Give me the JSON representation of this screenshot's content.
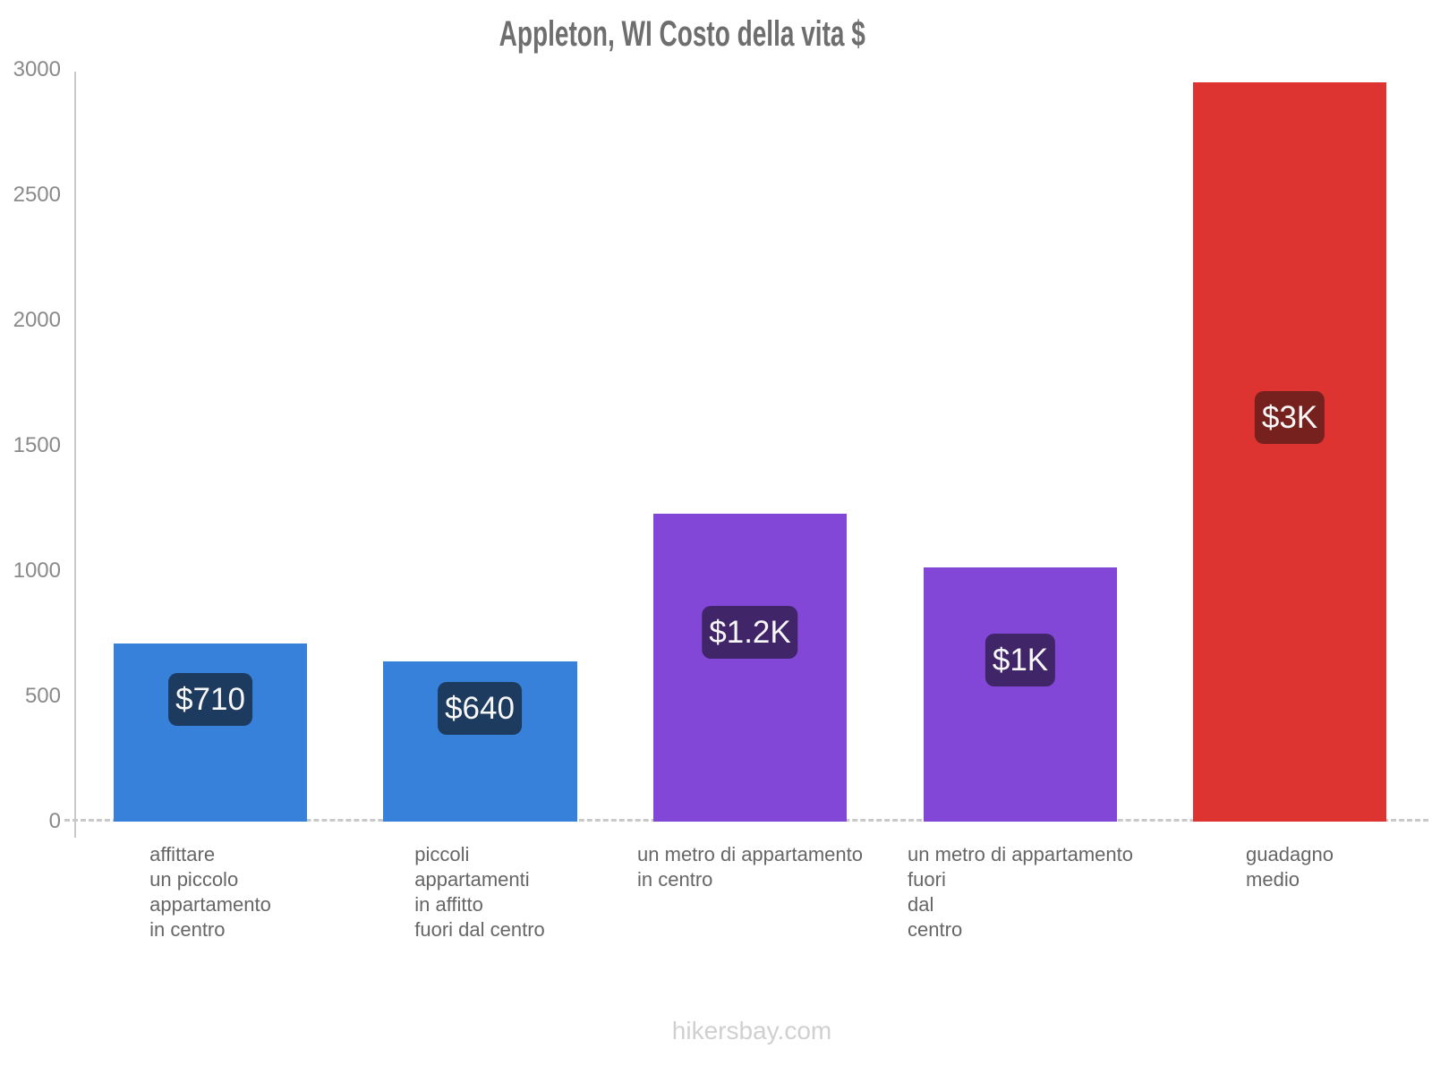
{
  "title": "Appleton, WI Costo della vita $",
  "footer": "hikersbay.com",
  "y_axis": {
    "ticks": [
      "3000",
      "2500",
      "2000",
      "1500",
      "1000",
      "500",
      "0"
    ]
  },
  "bars": [
    {
      "value_label": "$710",
      "category_lines": [
        "affittare",
        "un piccolo",
        "appartamento",
        "in centro"
      ],
      "bar_color": "#3781db",
      "label_bg": "#1d3b5e"
    },
    {
      "value_label": "$640",
      "category_lines": [
        "piccoli",
        "appartamenti",
        "in affitto",
        "fuori dal centro"
      ],
      "bar_color": "#3781db",
      "label_bg": "#1d3b5e"
    },
    {
      "value_label": "$1.2K",
      "category_lines": [
        "un metro di appartamento",
        "in centro"
      ],
      "bar_color": "#8347d8",
      "label_bg": "#402669"
    },
    {
      "value_label": "$1K",
      "category_lines": [
        "un metro di appartamento",
        "fuori",
        "dal",
        "centro"
      ],
      "bar_color": "#8347d8",
      "label_bg": "#402669"
    },
    {
      "value_label": "$3K",
      "category_lines": [
        "guadagno",
        "medio"
      ],
      "bar_color": "#dd3432",
      "label_bg": "#77211f"
    }
  ],
  "chart_data": {
    "type": "bar",
    "title": "Appleton, WI Costo della vita $",
    "categories": [
      "affittare un piccolo appartamento in centro",
      "piccoli appartamenti in affitto fuori dal centro",
      "un metro di appartamento in centro",
      "un metro di appartamento fuori dal centro",
      "guadagno medio"
    ],
    "values": [
      710,
      640,
      1230,
      1015,
      2950
    ],
    "value_labels": [
      "$710",
      "$640",
      "$1.2K",
      "$1K",
      "$3K"
    ],
    "bar_colors": [
      "#3781db",
      "#3781db",
      "#8347d8",
      "#8347d8",
      "#dd3432"
    ],
    "xlabel": "",
    "ylabel": "",
    "ylim": [
      0,
      3000
    ],
    "yticks": [
      0,
      500,
      1000,
      1500,
      2000,
      2500,
      3000
    ],
    "grid": false,
    "legend": false,
    "currency": "$",
    "watermark": "hikersbay.com"
  }
}
